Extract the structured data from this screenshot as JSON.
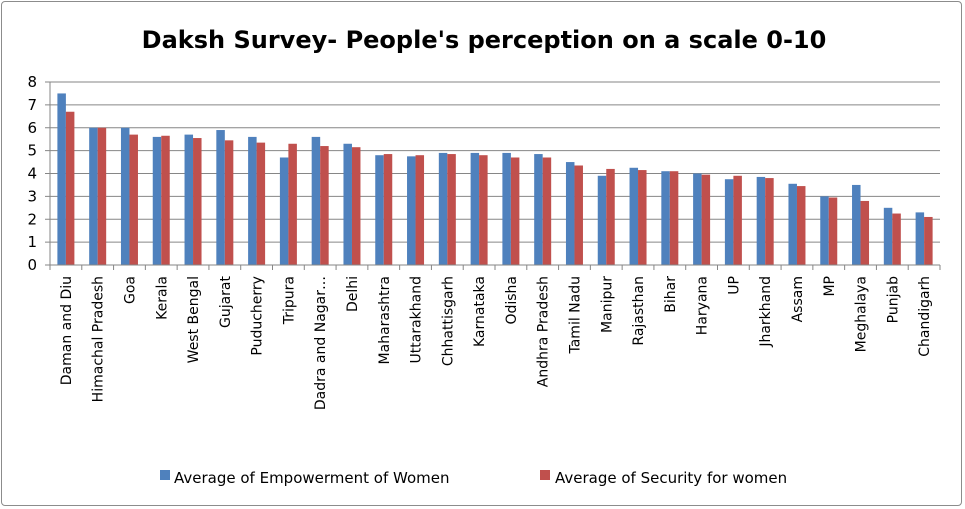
{
  "chart_data": {
    "type": "bar",
    "title": "Daksh Survey- People's perception  on a scale 0-10",
    "xlabel": "",
    "ylabel": "",
    "ylim": [
      0,
      8
    ],
    "yticks": [
      0,
      1,
      2,
      3,
      4,
      5,
      6,
      7,
      8
    ],
    "grid": true,
    "legend_position": "bottom",
    "categories": [
      "Daman and Diu",
      "Himachal Pradesh",
      "Goa",
      "Kerala",
      "West Bengal",
      "Gujarat",
      "Puducherry",
      "Tripura",
      "Dadra and Nagar…",
      "Delhi",
      "Maharashtra",
      "Uttarakhand",
      "Chhattisgarh",
      "Karnataka",
      "Odisha",
      "Andhra Pradesh",
      "Tamil Nadu",
      "Manipur",
      "Rajasthan",
      "Bihar",
      "Haryana",
      "UP",
      "Jharkhand",
      "Assam",
      "MP",
      "Meghalaya",
      "Punjab",
      "Chandigarh"
    ],
    "series": [
      {
        "name": "Average of Empowerment of Women",
        "color": "#4f81bd",
        "values": [
          7.5,
          6.0,
          6.0,
          5.6,
          5.7,
          5.9,
          5.6,
          4.7,
          5.6,
          5.3,
          4.8,
          4.75,
          4.9,
          4.9,
          4.9,
          4.85,
          4.5,
          3.9,
          4.25,
          4.1,
          4.0,
          3.75,
          3.85,
          3.55,
          3.0,
          3.5,
          2.5,
          2.3
        ]
      },
      {
        "name": "Average of Security for women",
        "color": "#c0504d",
        "values": [
          6.7,
          6.0,
          5.7,
          5.65,
          5.55,
          5.45,
          5.35,
          5.3,
          5.2,
          5.15,
          4.85,
          4.8,
          4.85,
          4.8,
          4.7,
          4.7,
          4.35,
          4.2,
          4.15,
          4.1,
          3.95,
          3.9,
          3.8,
          3.45,
          2.95,
          2.8,
          2.25,
          2.1
        ]
      }
    ]
  }
}
